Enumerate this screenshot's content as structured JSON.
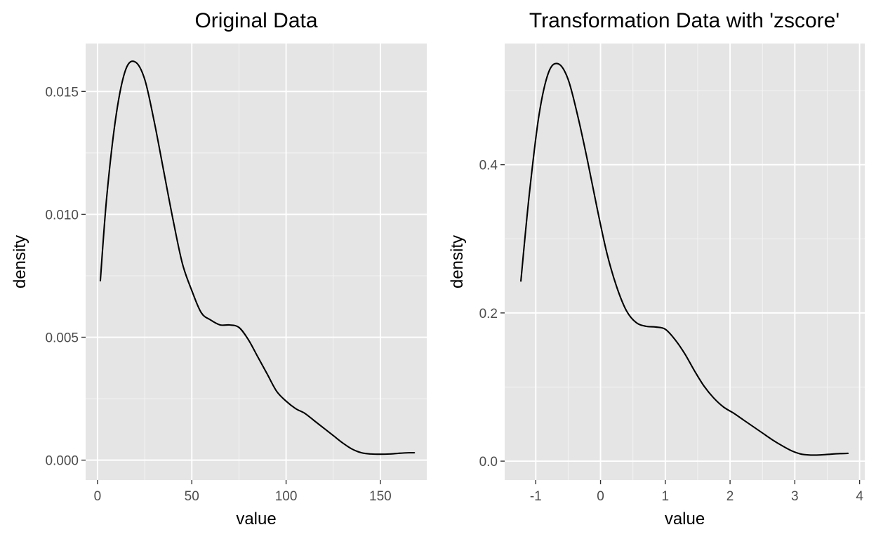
{
  "chart_data": [
    {
      "type": "line",
      "title": "Original Data",
      "xlabel": "value",
      "ylabel": "density",
      "xlim": [
        -6.3,
        174.6
      ],
      "ylim": [
        -0.00081,
        0.01695
      ],
      "xticks": [
        0,
        50,
        100,
        150
      ],
      "xtick_labels": [
        "0",
        "50",
        "100",
        "150"
      ],
      "yticks": [
        0,
        0.005,
        0.01,
        0.015
      ],
      "ytick_labels": [
        "0.000",
        "0.005",
        "0.010",
        "0.015"
      ],
      "grid": true,
      "series": [
        {
          "x": [
            1.5,
            5,
            10,
            15,
            20,
            25,
            30,
            35,
            40,
            45,
            50,
            55,
            60,
            65,
            70,
            75,
            80,
            85,
            90,
            95,
            100,
            105,
            110,
            115,
            120,
            125,
            130,
            135,
            140,
            145,
            150,
            155,
            160,
            165,
            168
          ],
          "y": [
            0.0073,
            0.0108,
            0.0141,
            0.0159,
            0.0162,
            0.0155,
            0.0138,
            0.0118,
            0.0098,
            0.008,
            0.0069,
            0.006,
            0.0057,
            0.0055,
            0.0055,
            0.0054,
            0.0049,
            0.0042,
            0.0035,
            0.0028,
            0.0024,
            0.0021,
            0.0019,
            0.0016,
            0.0013,
            0.001,
            0.0007,
            0.00045,
            0.0003,
            0.00025,
            0.00024,
            0.00025,
            0.00028,
            0.0003,
            0.0003
          ]
        }
      ]
    },
    {
      "type": "line",
      "title": "Transformation Data with 'zscore'",
      "xlabel": "value",
      "ylabel": "density",
      "xlim": [
        -1.48,
        4.08
      ],
      "ylim": [
        -0.0255,
        0.5635
      ],
      "xticks": [
        -1,
        0,
        1,
        2,
        3,
        4
      ],
      "xtick_labels": [
        "-1",
        "0",
        "1",
        "2",
        "3",
        "4"
      ],
      "yticks": [
        0,
        0.2,
        0.4
      ],
      "ytick_labels": [
        "0.0",
        "0.2",
        "0.4"
      ],
      "grid": true,
      "series": [
        {
          "x": [
            -1.23,
            -1.1,
            -0.95,
            -0.8,
            -0.65,
            -0.5,
            -0.35,
            -0.2,
            -0.05,
            0.1,
            0.25,
            0.4,
            0.55,
            0.7,
            0.85,
            1.0,
            1.15,
            1.3,
            1.45,
            1.6,
            1.75,
            1.9,
            2.05,
            2.2,
            2.35,
            2.5,
            2.65,
            2.8,
            2.95,
            3.1,
            3.25,
            3.4,
            3.55,
            3.7,
            3.82
          ],
          "y": [
            0.243,
            0.36,
            0.467,
            0.525,
            0.536,
            0.515,
            0.465,
            0.405,
            0.34,
            0.28,
            0.235,
            0.203,
            0.187,
            0.182,
            0.181,
            0.178,
            0.164,
            0.145,
            0.122,
            0.101,
            0.085,
            0.073,
            0.065,
            0.056,
            0.047,
            0.038,
            0.029,
            0.021,
            0.014,
            0.0095,
            0.0082,
            0.0084,
            0.0094,
            0.0102,
            0.0105
          ]
        }
      ]
    }
  ]
}
